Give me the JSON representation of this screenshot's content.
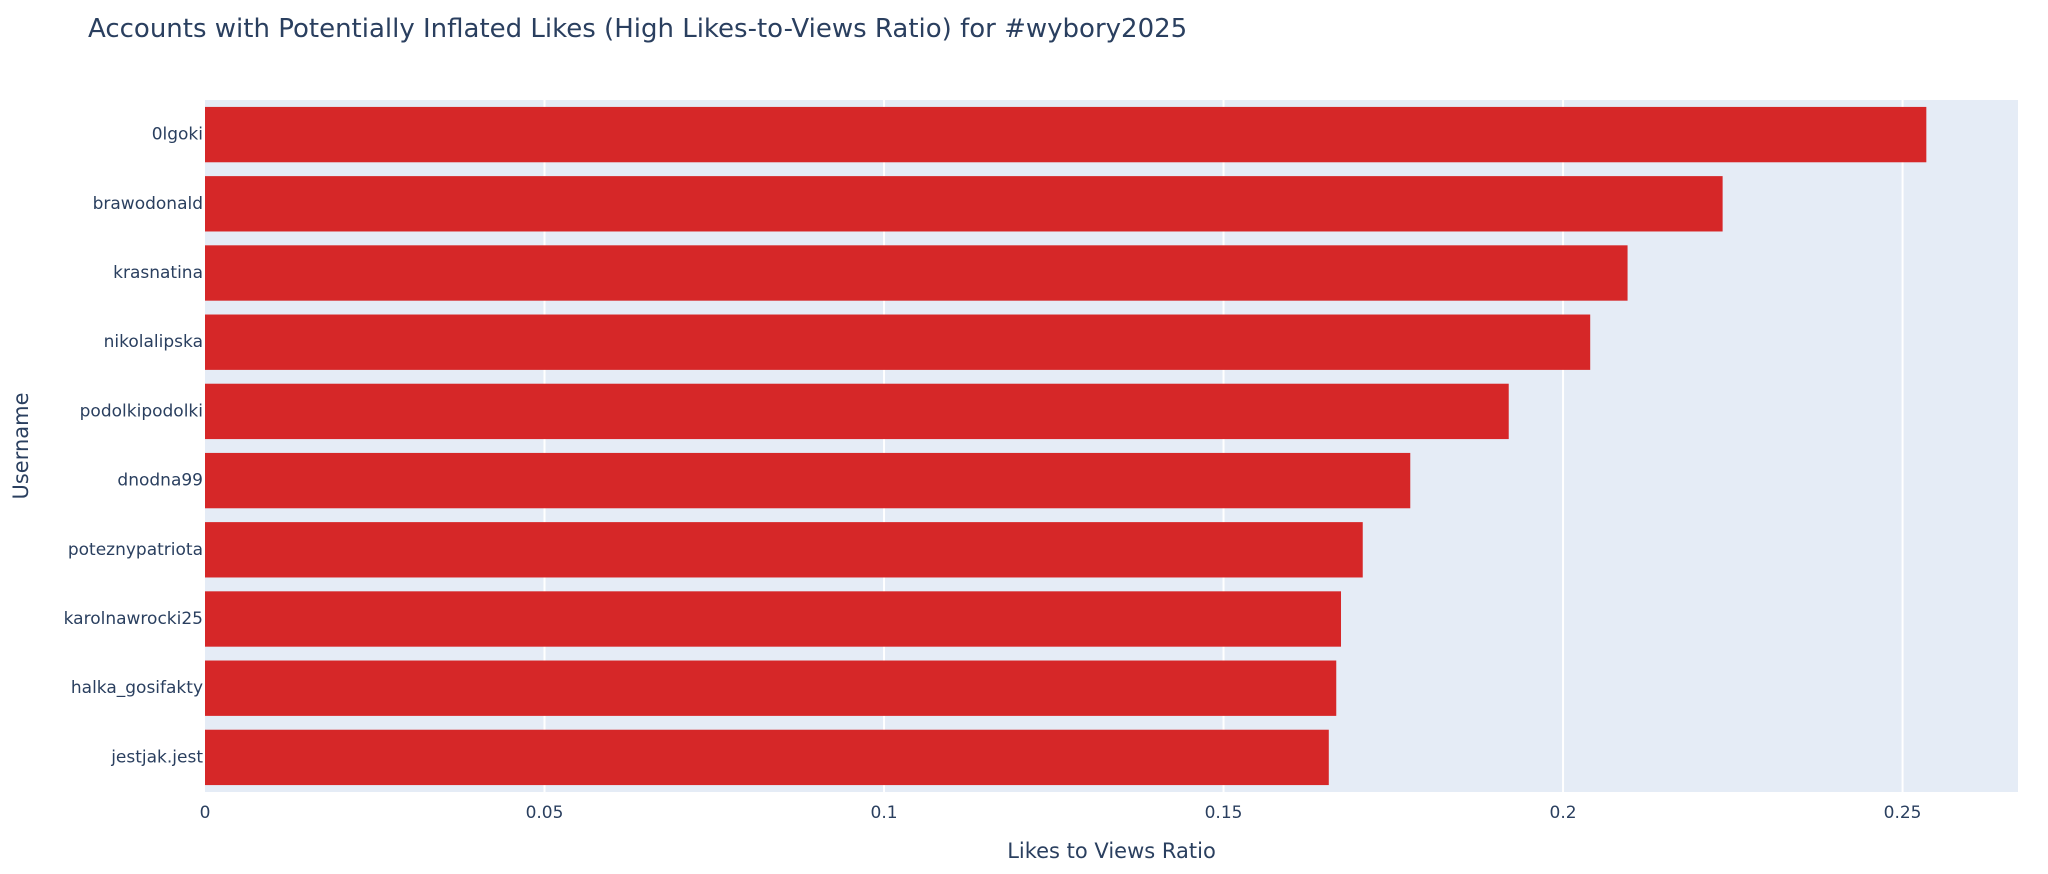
{
  "chart_data": {
    "type": "bar",
    "orientation": "horizontal",
    "title": "Accounts with Potentially Inflated Likes (High Likes-to-Views Ratio) for #wybory2025",
    "xlabel": "Likes to Views Ratio",
    "ylabel": "Username",
    "xlim": [
      0,
      0.267
    ],
    "xticks": [
      0,
      0.05,
      0.1,
      0.15,
      0.2,
      0.25
    ],
    "xtick_labels": [
      "0",
      "0.05",
      "0.1",
      "0.15",
      "0.2",
      "0.25"
    ],
    "grid": true,
    "bar_color": "#d62728",
    "plot_background": "#e5ecf6",
    "categories": [
      "0lgoki",
      "brawodonald",
      "krasnatina",
      "nikolalipska",
      "podolkipodolki",
      "dnodna99",
      "poteznypatriota",
      "karolnawrocki25",
      "halka_gosifakty",
      "jestjak.jest"
    ],
    "values": [
      0.2535,
      0.2235,
      0.2095,
      0.204,
      0.192,
      0.1775,
      0.1705,
      0.1673,
      0.1666,
      0.1655
    ]
  }
}
